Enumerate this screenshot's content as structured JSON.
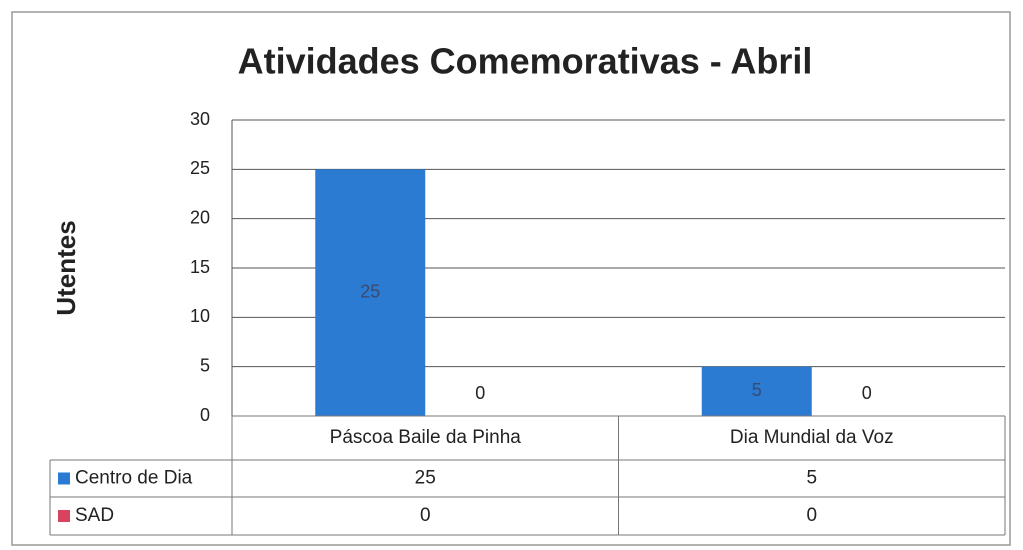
{
  "chart_data": {
    "type": "bar",
    "title": "Atividades Comemorativas - Abril",
    "y_label": "Utentes",
    "categories": [
      "Páscoa Baile da Pinha",
      "Dia Mundial da Voz"
    ],
    "series": [
      {
        "name": "Centro de Dia",
        "color": "#2b7bd3",
        "values": [
          25,
          5
        ]
      },
      {
        "name": "SAD",
        "color": "#d9435e",
        "values": [
          0,
          0
        ]
      }
    ],
    "ylim": [
      0,
      30
    ],
    "yticks": [
      0,
      5,
      10,
      15,
      20,
      25,
      30
    ],
    "grid": true
  }
}
